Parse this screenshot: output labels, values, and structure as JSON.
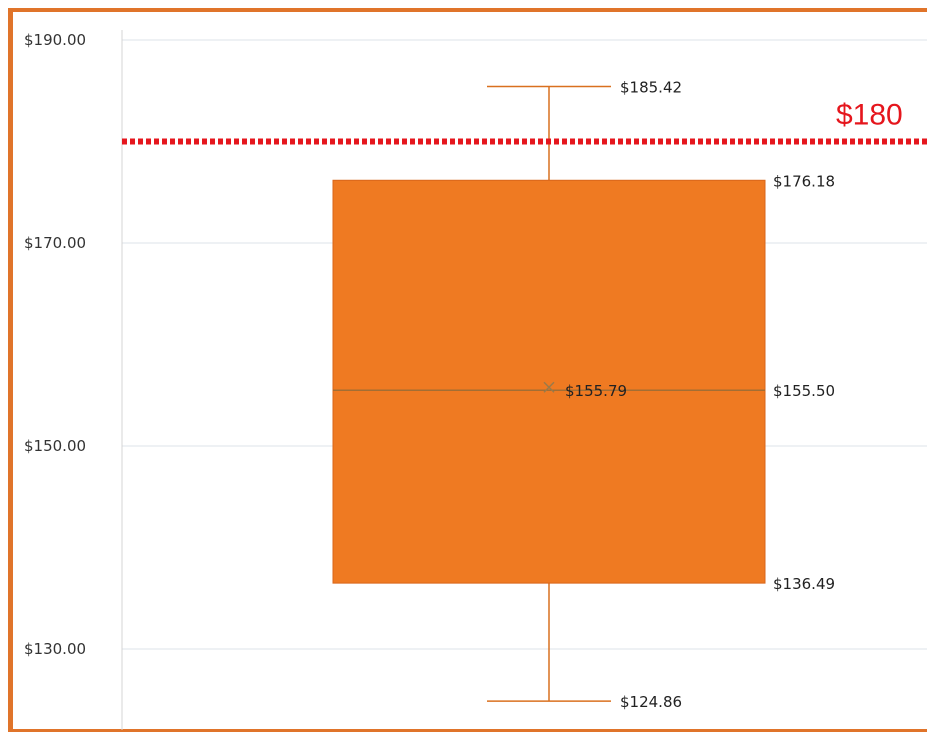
{
  "chart_data": {
    "type": "box",
    "ylim": [
      122,
      190
    ],
    "y_ticks": [
      "$190.00",
      "$170.00",
      "$150.00",
      "$130.00"
    ],
    "y_tick_values": [
      190,
      170,
      150,
      130
    ],
    "box": {
      "min": 124.86,
      "q1": 136.49,
      "median": 155.5,
      "mean": 155.79,
      "q3": 176.18,
      "max": 185.42
    },
    "labels": {
      "min": "$124.86",
      "q1": "$136.49",
      "median": "$155.50",
      "mean": "$155.79",
      "q3": "$176.18",
      "max": "$185.42"
    },
    "reference_line": {
      "value": 180,
      "label": "$180",
      "style": "dotted"
    },
    "grid": true,
    "colors": {
      "box_fill": "#ef7a22",
      "box_stroke": "#d9661a",
      "whisker": "#d9701f",
      "median_line": "#8a6a3a",
      "reference_line": "#e5161d",
      "gridline": "#dde3ea",
      "frame": "#e0742a"
    }
  }
}
